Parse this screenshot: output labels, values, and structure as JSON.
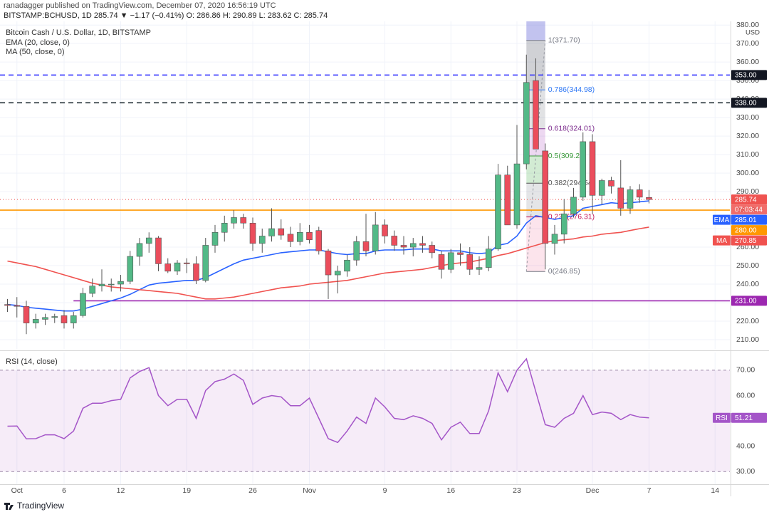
{
  "header": {
    "author": "ranadagger published on TradingView.com, December 07, 2020 16:56:19 UTC",
    "symbol": "BITSTAMP:BCHUSD, 1D  285.74 ▼ −1.17 (−0.41%)  O: 286.86  H: 290.89  L: 283.62  C: 285.74"
  },
  "footer": "TradingView",
  "chart_data": [
    {
      "type": "candlestick",
      "title": "Bitcoin Cash / U.S. Dollar, 1D, BITSTAMP",
      "y_unit": "USD",
      "categories": [
        "Sep 30",
        "Oct 1",
        "Oct 2",
        "Oct 3",
        "Oct 4",
        "Oct 5",
        "Oct 6",
        "Oct 7",
        "Oct 8",
        "Oct 9",
        "Oct 10",
        "Oct 11",
        "Oct 12",
        "Oct 13",
        "Oct 14",
        "Oct 15",
        "Oct 16",
        "Oct 17",
        "Oct 18",
        "Oct 19",
        "Oct 20",
        "Oct 21",
        "Oct 22",
        "Oct 23",
        "Oct 24",
        "Oct 25",
        "Oct 26",
        "Oct 27",
        "Oct 28",
        "Oct 29",
        "Oct 30",
        "Oct 31",
        "Nov 1",
        "Nov 2",
        "Nov 3",
        "Nov 4",
        "Nov 5",
        "Nov 6",
        "Nov 7",
        "Nov 8",
        "Nov 9",
        "Nov 10",
        "Nov 11",
        "Nov 12",
        "Nov 13",
        "Nov 14",
        "Nov 15",
        "Nov 16",
        "Nov 17",
        "Nov 18",
        "Nov 19",
        "Nov 20",
        "Nov 21",
        "Nov 22",
        "Nov 23",
        "Nov 24",
        "Nov 25",
        "Nov 26",
        "Nov 27",
        "Nov 28",
        "Nov 29",
        "Nov 30",
        "Dec 1",
        "Dec 2",
        "Dec 3",
        "Dec 4",
        "Dec 5",
        "Dec 6",
        "Dec 7",
        "Dec 8",
        "Dec 9",
        "Dec 10",
        "Dec 11",
        "Dec 12",
        "Dec 13",
        "Dec 14",
        "Dec 15"
      ],
      "open": [
        229,
        228.5,
        228,
        219,
        221,
        222,
        223,
        219,
        223,
        235,
        239,
        240,
        240,
        241.5,
        255,
        262,
        265,
        251,
        247,
        251.5,
        251,
        242,
        261,
        268,
        273,
        276,
        273,
        262,
        266,
        270,
        267,
        263,
        268,
        269,
        258,
        245,
        247,
        253,
        263,
        258,
        272,
        266,
        261,
        260,
        262,
        261,
        256,
        248,
        257,
        256,
        248,
        249,
        259,
        299,
        272,
        305,
        350,
        312,
        262,
        267,
        278,
        287,
        317,
        288,
        296,
        292,
        281,
        291,
        286.86,
        null,
        null,
        null,
        null,
        null,
        null,
        null,
        null
      ],
      "high": [
        232,
        233,
        231,
        224,
        224,
        224,
        226,
        225,
        238,
        243,
        248,
        243,
        245,
        258,
        265,
        268,
        266,
        254,
        253,
        254,
        255,
        265,
        272,
        277,
        280,
        278,
        276,
        270,
        281,
        275,
        271,
        273,
        272,
        271,
        259,
        250,
        256,
        266,
        278,
        279,
        275,
        269,
        266,
        265,
        266,
        263,
        258,
        259,
        262,
        260,
        255,
        266,
        305,
        304,
        326,
        364,
        362,
        316,
        272,
        286,
        292,
        322,
        321,
        297,
        298,
        307,
        293,
        294,
        290.89,
        null,
        null,
        null,
        null,
        null,
        null,
        null,
        null
      ],
      "low": [
        225,
        222,
        213,
        216,
        218,
        219,
        216,
        216,
        222,
        233,
        236,
        236,
        236,
        240,
        250,
        257,
        247,
        246,
        245,
        246,
        240,
        241,
        257,
        263,
        270,
        270,
        258,
        257,
        263,
        264,
        260,
        261,
        262,
        256,
        232,
        235,
        244,
        250,
        255,
        256,
        262,
        258,
        256,
        255,
        257,
        254,
        243,
        246,
        250,
        245,
        245,
        247,
        258,
        272,
        270,
        302,
        313,
        248,
        256,
        262,
        276,
        285,
        278,
        283,
        289,
        277,
        278,
        284,
        283.62,
        null,
        null,
        null,
        null,
        null,
        null,
        null,
        null
      ],
      "close": [
        228.5,
        228,
        219,
        221,
        222,
        222.5,
        219,
        223,
        235,
        239,
        240,
        240,
        241.5,
        255,
        262,
        265,
        251,
        247,
        251.5,
        251,
        242,
        261,
        268,
        273,
        276,
        273,
        262,
        266,
        270,
        266.5,
        263,
        268,
        264,
        258,
        245,
        247,
        253,
        263,
        258,
        272,
        266,
        261,
        260,
        262,
        261,
        257,
        248,
        257,
        256,
        248,
        249,
        259,
        299,
        272,
        305,
        349,
        313,
        262,
        267,
        278,
        287,
        317,
        288,
        296,
        293,
        281,
        291,
        287,
        285.74,
        null,
        null,
        null,
        null,
        null,
        null,
        null,
        null
      ],
      "up_color": "#53b987",
      "down_color": "#eb4d5c",
      "series": [
        {
          "name": "EMA",
          "label": "EMA (20, close, 0)",
          "color": "#2962ff",
          "tag": {
            "value": 285.01,
            "label": "285.01"
          },
          "values": [
            229,
            228.5,
            227.5,
            227,
            226.5,
            226,
            225.5,
            225.5,
            226.5,
            228,
            229.5,
            231,
            232.5,
            234.5,
            237,
            239.5,
            240.5,
            241,
            241.5,
            242,
            242,
            243.5,
            246,
            248.5,
            251,
            253,
            254,
            255,
            256,
            257,
            257.5,
            258,
            258.5,
            258.5,
            257.5,
            256.5,
            256,
            256.5,
            256.5,
            258,
            258.5,
            258.5,
            258.5,
            259,
            259,
            259,
            258,
            258,
            258,
            257,
            256.5,
            257,
            261,
            262,
            266,
            273,
            277,
            276,
            275,
            276,
            277,
            281,
            282,
            283,
            284,
            283.5,
            284,
            284.5,
            285.01,
            null,
            null,
            null,
            null,
            null,
            null,
            null,
            null
          ]
        },
        {
          "name": "MA",
          "label": "MA (50, close, 0)",
          "color": "#f0524f",
          "tag": {
            "value": 270.85,
            "label": "270.85"
          },
          "values": [
            252.5,
            251.5,
            250.5,
            249.5,
            248,
            246.5,
            245,
            243.5,
            242,
            240.5,
            239.5,
            238.5,
            238,
            237.5,
            237,
            236.5,
            236,
            235.5,
            235,
            234,
            233,
            232,
            232,
            232.5,
            233,
            234,
            235,
            236,
            237,
            238,
            238.5,
            239,
            240,
            240.5,
            241,
            241.5,
            242,
            243,
            244,
            245,
            246,
            246.5,
            247,
            247.5,
            248,
            249,
            250,
            251,
            251.5,
            252,
            253,
            254,
            255.5,
            256.5,
            258,
            259.5,
            261,
            262.5,
            263.5,
            264,
            264.5,
            265.5,
            266,
            267,
            267.5,
            268,
            269,
            270,
            270.85,
            null,
            null,
            null,
            null,
            null,
            null,
            null,
            null
          ]
        }
      ],
      "last_price": {
        "value": 285.74,
        "label": "285.74",
        "color": "#ef5350"
      },
      "countdown": "07:03:44",
      "hlines": [
        {
          "value": 353,
          "label": "353.00",
          "color": "#2b2bff",
          "tag_color": "#131722",
          "style": "dashed"
        },
        {
          "value": 338,
          "label": "338.00",
          "color": "#263238",
          "tag_color": "#131722",
          "style": "dashed"
        },
        {
          "value": 280,
          "label": "280.00",
          "color": "#ff9800",
          "tag_color": "#ff9800",
          "style": "solid"
        },
        {
          "value": 231,
          "label": "231.00",
          "color": "#9c27b0",
          "tag_color": "#9c27b0",
          "style": "solid",
          "from": "Oct 7"
        }
      ],
      "fib": {
        "from": "Nov 24",
        "to": "Nov 26",
        "levels": [
          {
            "ratio": 1,
            "value": 371.7,
            "label": "1(371.70)",
            "color": "#787b86",
            "fill": "rgba(120,123,134,0.35)"
          },
          {
            "ratio": 0.786,
            "value": 344.98,
            "label": "0.786(344.98)",
            "color": "#3179f5",
            "fill": "rgba(120,123,134,0.22)"
          },
          {
            "ratio": 0.618,
            "value": 324.01,
            "label": "0.618(324.01)",
            "color": "#7b2a8c",
            "fill": "rgba(156,39,176,0.18)"
          },
          {
            "ratio": 0.5,
            "value": 309.27,
            "label": "0.5(309.27)",
            "color": "#3a9a3a",
            "fill": "rgba(76,175,80,0.25)"
          },
          {
            "ratio": 0.382,
            "value": 294.54,
            "label": "0.382(294.54)",
            "color": "#555",
            "fill": "rgba(120,123,134,0.2)"
          },
          {
            "ratio": 0.236,
            "value": 276.31,
            "label": "0.236(276.31)",
            "color": "#c2185b",
            "fill": "rgba(233,30,99,0.12)"
          },
          {
            "ratio": 0,
            "value": 246.85,
            "label": "0(246.85)",
            "color": "#787b86"
          }
        ]
      },
      "ylim": [
        205,
        382
      ],
      "yticks": [
        {
          "value": 210,
          "label": "210.00"
        },
        {
          "value": 220,
          "label": "220.00"
        },
        {
          "value": 230,
          "label": "230.00"
        },
        {
          "value": 240,
          "label": "240.00"
        },
        {
          "value": 250,
          "label": "250.00"
        },
        {
          "value": 260,
          "label": "260.00"
        },
        {
          "value": 270,
          "label": "270.00"
        },
        {
          "value": 280,
          "label": "280.00"
        },
        {
          "value": 290,
          "label": "290.00"
        },
        {
          "value": 300,
          "label": "300.00"
        },
        {
          "value": 310,
          "label": "310.00"
        },
        {
          "value": 320,
          "label": "320.00"
        },
        {
          "value": 330,
          "label": "330.00"
        },
        {
          "value": 340,
          "label": "340.00"
        },
        {
          "value": 350,
          "label": "350.00"
        },
        {
          "value": 360,
          "label": "360.00"
        },
        {
          "value": 370,
          "label": "370.00"
        },
        {
          "value": 380,
          "label": "380.00"
        }
      ],
      "grid": true
    },
    {
      "type": "line",
      "title": "RSI (14, close)",
      "categories": [
        "Sep 30",
        "Oct 1",
        "Oct 2",
        "Oct 3",
        "Oct 4",
        "Oct 5",
        "Oct 6",
        "Oct 7",
        "Oct 8",
        "Oct 9",
        "Oct 10",
        "Oct 11",
        "Oct 12",
        "Oct 13",
        "Oct 14",
        "Oct 15",
        "Oct 16",
        "Oct 17",
        "Oct 18",
        "Oct 19",
        "Oct 20",
        "Oct 21",
        "Oct 22",
        "Oct 23",
        "Oct 24",
        "Oct 25",
        "Oct 26",
        "Oct 27",
        "Oct 28",
        "Oct 29",
        "Oct 30",
        "Oct 31",
        "Nov 1",
        "Nov 2",
        "Nov 3",
        "Nov 4",
        "Nov 5",
        "Nov 6",
        "Nov 7",
        "Nov 8",
        "Nov 9",
        "Nov 10",
        "Nov 11",
        "Nov 12",
        "Nov 13",
        "Nov 14",
        "Nov 15",
        "Nov 16",
        "Nov 17",
        "Nov 18",
        "Nov 19",
        "Nov 20",
        "Nov 21",
        "Nov 22",
        "Nov 23",
        "Nov 24",
        "Nov 25",
        "Nov 26",
        "Nov 27",
        "Nov 28",
        "Nov 29",
        "Nov 30",
        "Dec 1",
        "Dec 2",
        "Dec 3",
        "Dec 4",
        "Dec 5",
        "Dec 6",
        "Dec 7",
        "Dec 8",
        "Dec 9",
        "Dec 10",
        "Dec 11",
        "Dec 12",
        "Dec 13",
        "Dec 14",
        "Dec 15"
      ],
      "series": [
        {
          "name": "RSI",
          "color": "#a455c8",
          "tag": {
            "value": 51.21,
            "label": "51.21"
          },
          "values": [
            47.9,
            48,
            42.9,
            43,
            44.5,
            44.5,
            43,
            46,
            55,
            57,
            57,
            58,
            58.5,
            67,
            69.5,
            71,
            60,
            56,
            58.5,
            58.5,
            51,
            62,
            65.5,
            66.5,
            68.5,
            66,
            56.5,
            59,
            60,
            59.5,
            56,
            56,
            59,
            51,
            43,
            41.5,
            46,
            51.5,
            49,
            59,
            55.5,
            51,
            50.5,
            52,
            51,
            49,
            42.5,
            47.5,
            49.5,
            45,
            45,
            54,
            69,
            61.5,
            70,
            74.5,
            61.5,
            48.5,
            47.5,
            51,
            53,
            60,
            52.5,
            53.5,
            53,
            50.5,
            52.5,
            51.5,
            51.21,
            null,
            null,
            null,
            null,
            null,
            null,
            null,
            null
          ]
        }
      ],
      "band": {
        "lower": 30,
        "upper": 70,
        "fill": "rgba(156,39,176,0.09)",
        "color": "#9c89a8"
      },
      "ylim": [
        25,
        77
      ],
      "yticks": [
        {
          "value": 30,
          "label": "30.00"
        },
        {
          "value": 40,
          "label": "40.00"
        },
        {
          "value": 60,
          "label": "60.00"
        },
        {
          "value": 70,
          "label": "70.00"
        }
      ],
      "xticks": [
        {
          "value": "Oct 1",
          "label": "Oct"
        },
        {
          "value": "Oct 6",
          "label": "6"
        },
        {
          "value": "Oct 12",
          "label": "12"
        },
        {
          "value": "Oct 19",
          "label": "19"
        },
        {
          "value": "Oct 26",
          "label": "26"
        },
        {
          "value": "Nov 1",
          "label": "Nov"
        },
        {
          "value": "Nov 9",
          "label": "9"
        },
        {
          "value": "Nov 16",
          "label": "16"
        },
        {
          "value": "Nov 23",
          "label": "23"
        },
        {
          "value": "Dec 1",
          "label": "Dec"
        },
        {
          "value": "Dec 7",
          "label": "7"
        },
        {
          "value": "Dec 14",
          "label": "14"
        }
      ],
      "grid": true
    }
  ]
}
